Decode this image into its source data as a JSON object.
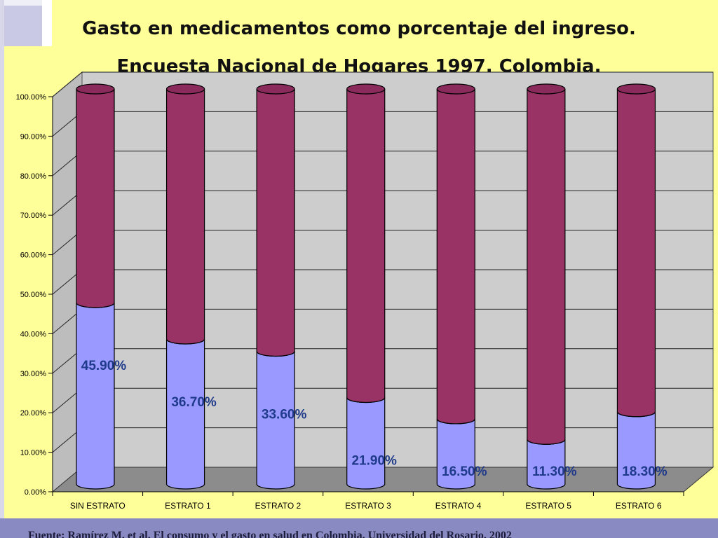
{
  "slide": {
    "title_line1": "Gasto en medicamentos como porcentaje del ingreso.",
    "title_line2": "Encuesta Nacional de Hogares 1997. Colombia.",
    "footer_text": "Fuente: Ramírez M. et al. El consumo y el gasto en salud en Colombia. Universidad del Rosario, 2002"
  },
  "colors": {
    "background": "#ffff99",
    "lower_segment": "#9999ff",
    "upper_segment": "#993366",
    "data_label": "#1f3a8a",
    "footer_bar": "#8a8ac2"
  },
  "chart_data": {
    "type": "bar",
    "stacked": true,
    "three_d": true,
    "categories": [
      "SIN ESTRATO",
      "ESTRATO 1",
      "ESTRATO 2",
      "ESTRATO 3",
      "ESTRATO 4",
      "ESTRATO 5",
      "ESTRATO 6"
    ],
    "series": [
      {
        "values": [
          45.9,
          36.7,
          33.6,
          21.9,
          16.5,
          11.3,
          18.3
        ]
      },
      {
        "values": [
          54.1,
          63.3,
          66.4,
          78.1,
          83.5,
          88.7,
          81.7
        ]
      }
    ],
    "data_labels": [
      "45.90%",
      "36.70%",
      "33.60%",
      "21.90%",
      "16.50%",
      "11.30%",
      "18.30%"
    ],
    "yticks": [
      "0.00%",
      "10.00%",
      "20.00%",
      "30.00%",
      "40.00%",
      "50.00%",
      "60.00%",
      "70.00%",
      "80.00%",
      "90.00%",
      "100.00%"
    ],
    "ylim": [
      0,
      100
    ],
    "grid": true,
    "legend": false
  }
}
